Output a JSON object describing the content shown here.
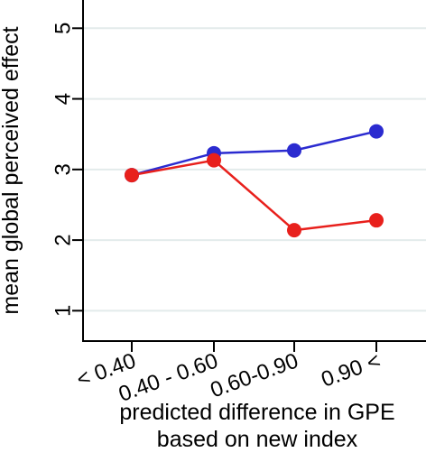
{
  "chart_data": {
    "type": "line",
    "categories": [
      "< 0.40",
      "0.40 - 0.60",
      "0.60-0.90",
      "0.90 <"
    ],
    "series": [
      {
        "color": "#2b2bd0",
        "values": [
          2.92,
          3.23,
          3.27,
          3.54
        ]
      },
      {
        "color": "#e8201c",
        "values": [
          2.92,
          3.13,
          2.14,
          2.28
        ]
      }
    ],
    "ylabel": "mean global perceived effect",
    "xlabel_lines": [
      "predicted difference in GPE",
      "based on new index"
    ],
    "yticks": [
      1,
      2,
      3,
      4,
      5
    ],
    "ylim": [
      0.57,
      5.4
    ],
    "grid": true
  }
}
